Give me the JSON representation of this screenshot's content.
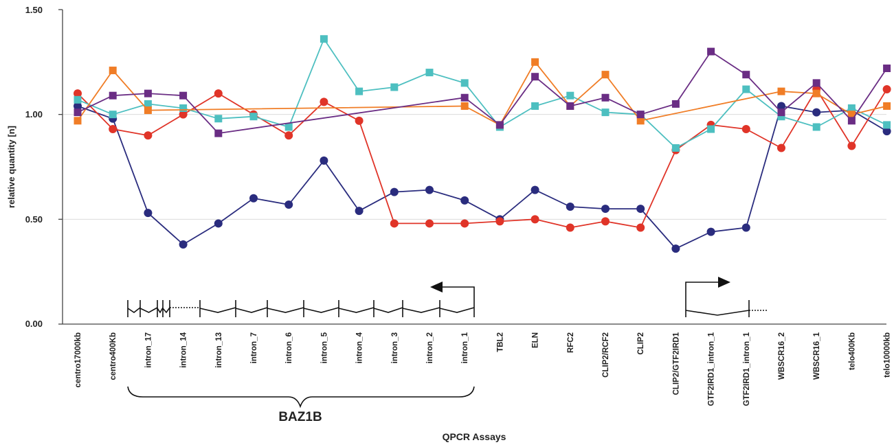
{
  "chart_data": {
    "type": "line",
    "title": "",
    "xlabel": "QPCR Assays",
    "ylabel": "relative quantity [n]",
    "ylim": [
      0,
      1.5
    ],
    "yticks": [
      "0.00",
      "0.50",
      "1.00",
      "1.50"
    ],
    "grid": true,
    "legend": "none",
    "categories": [
      "centro17000kb",
      "centro400Kb",
      "intron_17",
      "intron_14",
      "intron_13",
      "intron_7",
      "intron_6",
      "intron_5",
      "intron_4",
      "intron_3",
      "intron_2",
      "intron_1",
      "TBL2",
      "ELN",
      "RFC2",
      "CLIP2/RCF2",
      "CLIP2",
      "CLIP2/GTF2IRD1",
      "GTF2IRD1_intron_1",
      "GTF2IRD1_intron_1",
      "WBSCR16_2",
      "WBSCR16_1",
      "telo400Kb",
      "telo10000kb"
    ],
    "series": [
      {
        "color": "#2a2c7e",
        "marker": "circle",
        "points": [
          [
            0,
            1.04
          ],
          [
            1,
            0.98
          ],
          [
            2,
            0.53
          ],
          [
            3,
            0.38
          ],
          [
            4,
            0.48
          ],
          [
            5,
            0.6
          ],
          [
            6,
            0.57
          ],
          [
            7,
            0.78
          ],
          [
            8,
            0.54
          ],
          [
            9,
            0.63
          ],
          [
            10,
            0.64
          ],
          [
            11,
            0.59
          ],
          [
            12,
            0.5
          ],
          [
            13,
            0.64
          ],
          [
            14,
            0.56
          ],
          [
            15,
            0.55
          ],
          [
            16,
            0.55
          ],
          [
            17,
            0.36
          ],
          [
            18,
            0.44
          ],
          [
            19,
            0.46
          ],
          [
            20,
            1.04
          ],
          [
            21,
            1.01
          ],
          [
            22,
            1.02
          ],
          [
            23,
            0.92
          ]
        ]
      },
      {
        "color": "#e03428",
        "marker": "circle",
        "points": [
          [
            0,
            1.1
          ],
          [
            1,
            0.93
          ],
          [
            2,
            0.9
          ],
          [
            3,
            1.0
          ],
          [
            4,
            1.1
          ],
          [
            5,
            1.0
          ],
          [
            6,
            0.9
          ],
          [
            7,
            1.06
          ],
          [
            8,
            0.97
          ],
          [
            9,
            0.48
          ],
          [
            10,
            0.48
          ],
          [
            11,
            0.48
          ],
          [
            12,
            0.49
          ],
          [
            13,
            0.5
          ],
          [
            14,
            0.46
          ],
          [
            15,
            0.49
          ],
          [
            16,
            0.46
          ],
          [
            17,
            0.83
          ],
          [
            18,
            0.95
          ],
          [
            19,
            0.93
          ],
          [
            20,
            0.84
          ],
          [
            21,
            1.12
          ],
          [
            22,
            0.85
          ],
          [
            23,
            1.12
          ]
        ]
      },
      {
        "color": "#4dbfc0",
        "marker": "square",
        "points": [
          [
            0,
            1.07
          ],
          [
            1,
            1.0
          ],
          [
            2,
            1.05
          ],
          [
            3,
            1.03
          ],
          [
            4,
            0.98
          ],
          [
            5,
            0.99
          ],
          [
            6,
            0.94
          ],
          [
            7,
            1.36
          ],
          [
            8,
            1.11
          ],
          [
            9,
            1.13
          ],
          [
            10,
            1.2
          ],
          [
            11,
            1.15
          ],
          [
            12,
            0.94
          ],
          [
            13,
            1.04
          ],
          [
            14,
            1.09
          ],
          [
            15,
            1.01
          ],
          [
            16,
            1.0
          ],
          [
            17,
            0.84
          ],
          [
            18,
            0.93
          ],
          [
            19,
            1.12
          ],
          [
            20,
            0.99
          ],
          [
            21,
            0.94
          ],
          [
            22,
            1.03
          ],
          [
            23,
            0.95
          ]
        ]
      },
      {
        "color": "#f07d26",
        "marker": "square",
        "points": [
          [
            0,
            0.97
          ],
          [
            1,
            1.21
          ],
          [
            2,
            1.02
          ],
          [
            11,
            1.04
          ],
          [
            12,
            0.95
          ],
          [
            13,
            1.25
          ],
          [
            14,
            1.04
          ],
          [
            15,
            1.19
          ],
          [
            16,
            0.97
          ],
          [
            20,
            1.11
          ],
          [
            21,
            1.1
          ],
          [
            22,
            1.0
          ],
          [
            23,
            1.04
          ]
        ]
      },
      {
        "color": "#6a2d84",
        "marker": "square",
        "points": [
          [
            0,
            1.01
          ],
          [
            1,
            1.09
          ],
          [
            2,
            1.1
          ],
          [
            3,
            1.09
          ],
          [
            4,
            0.91
          ],
          [
            11,
            1.08
          ],
          [
            12,
            0.95
          ],
          [
            13,
            1.18
          ],
          [
            14,
            1.04
          ],
          [
            15,
            1.08
          ],
          [
            16,
            1.0
          ],
          [
            17,
            1.05
          ],
          [
            18,
            1.3
          ],
          [
            19,
            1.19
          ],
          [
            20,
            1.01
          ],
          [
            21,
            1.15
          ],
          [
            22,
            0.97
          ],
          [
            23,
            1.22
          ]
        ]
      }
    ],
    "annotations": {
      "gene_bracket_label": "BAZ1B"
    }
  }
}
